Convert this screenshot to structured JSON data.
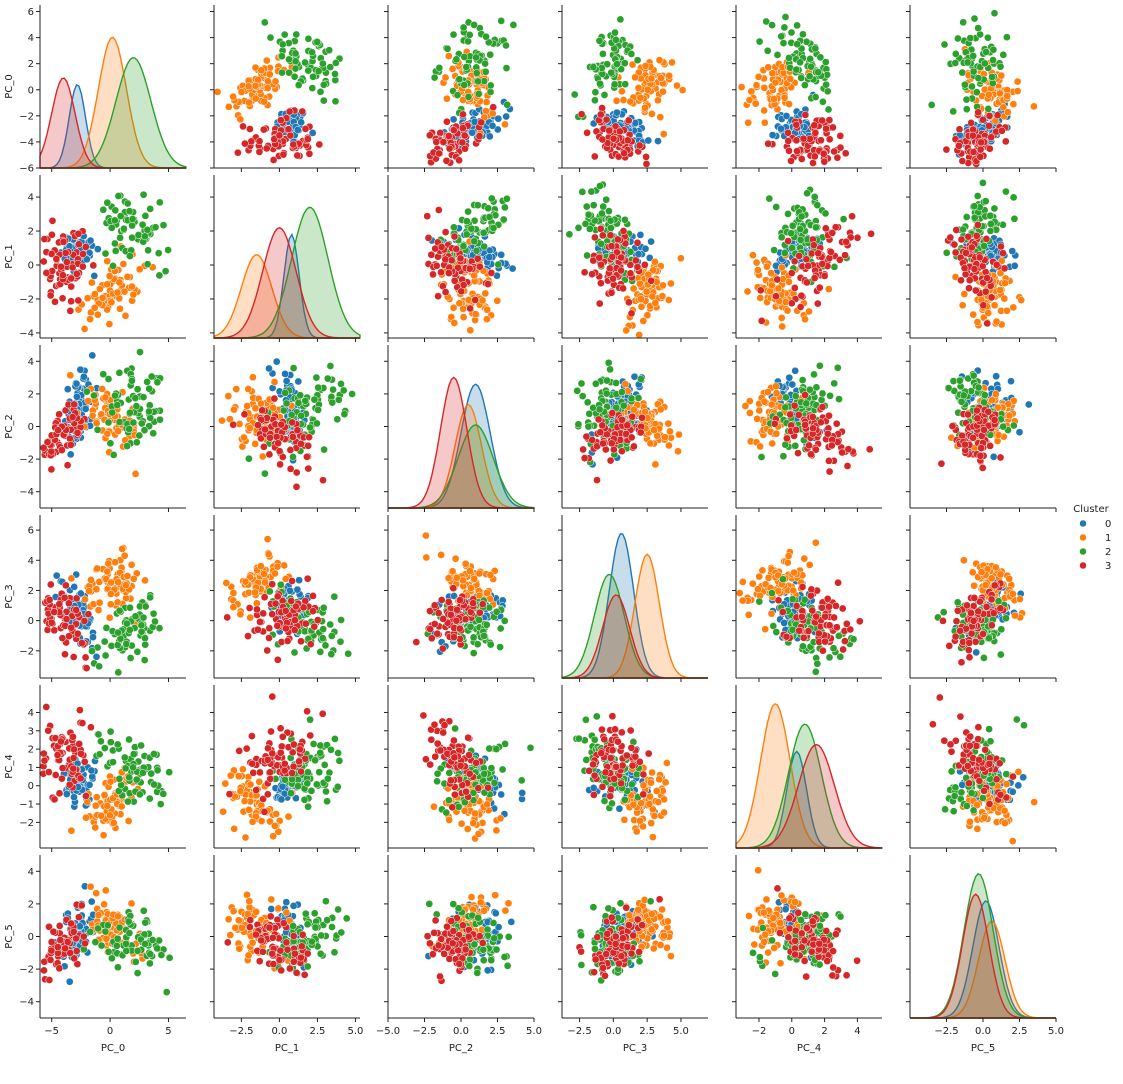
{
  "chart_data": {
    "type": "pairplot",
    "variables": [
      "PC_0",
      "PC_1",
      "PC_2",
      "PC_3",
      "PC_4",
      "PC_5"
    ],
    "bottom_labels": [
      "PC_0",
      "PC_1",
      "PC_2",
      "PC_3",
      "PC_4",
      "PC_5"
    ],
    "diagonal": "kde",
    "off_diagonal": "scatter",
    "legend": {
      "title": "Cluster",
      "placement": "right-middle",
      "entries": [
        {
          "label": "0",
          "color": "#1f77b4"
        },
        {
          "label": "1",
          "color": "#ff7f0e"
        },
        {
          "label": "2",
          "color": "#2ca02c"
        },
        {
          "label": "3",
          "color": "#d62728"
        }
      ]
    },
    "axes": [
      {
        "name": "PC_0",
        "range": [
          -6,
          6.5
        ],
        "ticks": [
          -6,
          -4,
          -2,
          0,
          2,
          4,
          6
        ],
        "xticks": [
          -5,
          0,
          5
        ],
        "xtick_labels": [
          "−5",
          "0",
          "5"
        ]
      },
      {
        "name": "PC_1",
        "range": [
          -4.3,
          5.3
        ],
        "ticks": [
          -4,
          -2,
          0,
          2,
          4
        ],
        "xticks": [
          -2.5,
          0,
          2.5,
          5
        ],
        "xtick_labels": [
          "−2.5",
          "0.0",
          "2.5",
          "5.0"
        ]
      },
      {
        "name": "PC_2",
        "range": [
          -5,
          5
        ],
        "ticks": [
          -4,
          -2,
          0,
          2,
          4
        ],
        "xticks": [
          -5,
          -2.5,
          0,
          2.5,
          5
        ],
        "xtick_labels": [
          "−5.0",
          "−2.5",
          "0.0",
          "2.5",
          "5.0"
        ]
      },
      {
        "name": "PC_3",
        "range": [
          -3.8,
          7
        ],
        "ticks": [
          -2,
          0,
          2,
          4,
          6
        ],
        "xticks": [
          -2.5,
          0,
          2.5,
          5,
          7.5
        ],
        "xtick_labels": [
          "−2.5",
          "0.0",
          "2.5",
          "5.0",
          "7.5"
        ]
      },
      {
        "name": "PC_4",
        "range": [
          -3.4,
          5.5
        ],
        "ticks": [
          -2,
          -1,
          0,
          1,
          2,
          3,
          4
        ],
        "xticks": [
          -2,
          0,
          2,
          4
        ],
        "xtick_labels": [
          "−2",
          "0",
          "2",
          "4"
        ]
      },
      {
        "name": "PC_5",
        "range": [
          -5,
          5
        ],
        "ticks": [
          -4,
          -2,
          0,
          2,
          4
        ],
        "xticks": [
          -2.5,
          0,
          2.5,
          5
        ],
        "xtick_labels": [
          "−2.5",
          "0.0",
          "2.5",
          "5.0"
        ]
      }
    ],
    "clusters": [
      {
        "id": 0,
        "color": "#1f77b4",
        "center": [
          -2.8,
          0.8,
          1.0,
          0.6,
          0.3,
          0.2
        ],
        "spread": [
          0.7,
          0.5,
          1.0,
          0.9,
          0.6,
          0.9
        ]
      },
      {
        "id": 1,
        "color": "#ff7f0e",
        "center": [
          0.2,
          -1.5,
          0.5,
          2.5,
          -1.0,
          0.6
        ],
        "spread": [
          1.2,
          1.0,
          0.9,
          0.9,
          0.9,
          0.9
        ]
      },
      {
        "id": 2,
        "color": "#2ca02c",
        "center": [
          2.0,
          2.0,
          1.0,
          -0.3,
          0.8,
          -0.3
        ],
        "spread": [
          1.5,
          1.2,
          1.2,
          1.1,
          1.0,
          1.0
        ]
      },
      {
        "id": 3,
        "color": "#d62728",
        "center": [
          -4.0,
          0.0,
          -0.5,
          0.2,
          1.5,
          -0.5
        ],
        "spread": [
          1.0,
          1.1,
          0.9,
          1.0,
          1.1,
          0.9
        ]
      }
    ],
    "points_per_cluster_per_panel": 70
  }
}
